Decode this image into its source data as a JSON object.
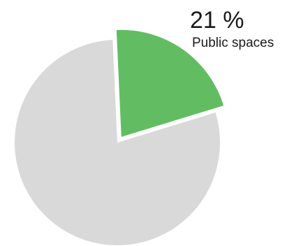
{
  "chart_data": {
    "type": "pie",
    "slices": [
      {
        "label": "Public spaces",
        "value": 21,
        "value_text": "21 %",
        "color": "#62bd62",
        "highlighted": true
      },
      {
        "label": "",
        "value": 79,
        "value_text": "",
        "color": "#d9d9d9",
        "highlighted": false
      }
    ],
    "legend": "none"
  }
}
